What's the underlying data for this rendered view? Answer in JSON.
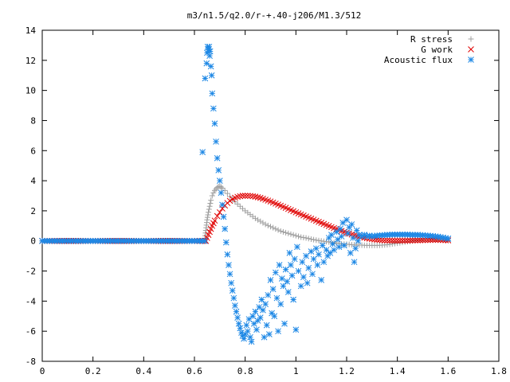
{
  "chart_data": {
    "type": "scatter",
    "title": "m3/n1.5/q2.0/r-+.40-j206/M1.3/512",
    "xlabel": "",
    "ylabel": "",
    "xlim": [
      0,
      1.8
    ],
    "ylim": [
      -8,
      14
    ],
    "x_ticks": [
      "0",
      "0.2",
      "0.4",
      "0.6",
      "0.8",
      "1",
      "1.2",
      "1.4",
      "1.6",
      "1.8"
    ],
    "y_ticks": [
      "-8",
      "-6",
      "-4",
      "-2",
      "0",
      "2",
      "4",
      "6",
      "8",
      "10",
      "12",
      "14"
    ],
    "grid": false,
    "legend_position": "top-right",
    "series": [
      {
        "name": "R stress",
        "marker": "plus",
        "color": "#a0a0a0",
        "points": [
          [
            0.0,
            0.0
          ],
          [
            0.6,
            0.0
          ],
          [
            0.64,
            0.0
          ],
          [
            0.645,
            0.7
          ],
          [
            0.65,
            1.4
          ],
          [
            0.655,
            1.9
          ],
          [
            0.66,
            2.3
          ],
          [
            0.665,
            2.7
          ],
          [
            0.67,
            3.0
          ],
          [
            0.675,
            3.2
          ],
          [
            0.68,
            3.35
          ],
          [
            0.685,
            3.45
          ],
          [
            0.69,
            3.55
          ],
          [
            0.695,
            3.6
          ],
          [
            0.7,
            3.62
          ],
          [
            0.705,
            3.58
          ],
          [
            0.71,
            3.5
          ],
          [
            0.72,
            3.35
          ],
          [
            0.73,
            3.15
          ],
          [
            0.74,
            2.95
          ],
          [
            0.75,
            2.75
          ],
          [
            0.76,
            2.6
          ],
          [
            0.77,
            2.45
          ],
          [
            0.78,
            2.3
          ],
          [
            0.79,
            2.15
          ],
          [
            0.8,
            2.0
          ],
          [
            0.82,
            1.75
          ],
          [
            0.84,
            1.5
          ],
          [
            0.86,
            1.3
          ],
          [
            0.88,
            1.1
          ],
          [
            0.9,
            0.95
          ],
          [
            0.92,
            0.8
          ],
          [
            0.94,
            0.65
          ],
          [
            0.96,
            0.55
          ],
          [
            0.98,
            0.45
          ],
          [
            1.0,
            0.35
          ],
          [
            1.02,
            0.25
          ],
          [
            1.04,
            0.2
          ],
          [
            1.06,
            0.12
          ],
          [
            1.08,
            0.05
          ],
          [
            1.1,
            0.0
          ],
          [
            1.12,
            -0.05
          ],
          [
            1.14,
            -0.1
          ],
          [
            1.16,
            -0.15
          ],
          [
            1.18,
            -0.2
          ],
          [
            1.2,
            -0.22
          ],
          [
            1.22,
            -0.25
          ],
          [
            1.24,
            -0.27
          ],
          [
            1.26,
            -0.28
          ],
          [
            1.28,
            -0.3
          ],
          [
            1.3,
            -0.3
          ],
          [
            1.32,
            -0.3
          ],
          [
            1.34,
            -0.28
          ],
          [
            1.36,
            -0.25
          ],
          [
            1.38,
            -0.2
          ],
          [
            1.4,
            -0.15
          ],
          [
            1.42,
            -0.1
          ],
          [
            1.44,
            -0.05
          ],
          [
            1.46,
            0.0
          ],
          [
            1.48,
            0.05
          ],
          [
            1.5,
            0.08
          ],
          [
            1.52,
            0.1
          ],
          [
            1.54,
            0.1
          ],
          [
            1.56,
            0.08
          ],
          [
            1.58,
            0.05
          ],
          [
            1.6,
            0.02
          ]
        ]
      },
      {
        "name": "G work",
        "marker": "cross",
        "color": "#e00000",
        "points": [
          [
            0.0,
            0.0
          ],
          [
            0.6,
            0.0
          ],
          [
            0.645,
            0.0
          ],
          [
            0.65,
            0.2
          ],
          [
            0.66,
            0.6
          ],
          [
            0.67,
            1.0
          ],
          [
            0.68,
            1.35
          ],
          [
            0.69,
            1.65
          ],
          [
            0.7,
            1.9
          ],
          [
            0.71,
            2.15
          ],
          [
            0.72,
            2.35
          ],
          [
            0.73,
            2.52
          ],
          [
            0.74,
            2.66
          ],
          [
            0.75,
            2.78
          ],
          [
            0.76,
            2.87
          ],
          [
            0.77,
            2.93
          ],
          [
            0.78,
            2.97
          ],
          [
            0.79,
            3.0
          ],
          [
            0.8,
            3.0
          ],
          [
            0.81,
            3.0
          ],
          [
            0.82,
            2.99
          ],
          [
            0.83,
            2.97
          ],
          [
            0.84,
            2.94
          ],
          [
            0.85,
            2.9
          ],
          [
            0.86,
            2.86
          ],
          [
            0.87,
            2.8
          ],
          [
            0.88,
            2.74
          ],
          [
            0.89,
            2.68
          ],
          [
            0.9,
            2.62
          ],
          [
            0.92,
            2.48
          ],
          [
            0.94,
            2.34
          ],
          [
            0.96,
            2.2
          ],
          [
            0.98,
            2.05
          ],
          [
            1.0,
            1.9
          ],
          [
            1.02,
            1.76
          ],
          [
            1.04,
            1.62
          ],
          [
            1.06,
            1.48
          ],
          [
            1.08,
            1.34
          ],
          [
            1.1,
            1.2
          ],
          [
            1.12,
            1.06
          ],
          [
            1.14,
            0.92
          ],
          [
            1.16,
            0.79
          ],
          [
            1.18,
            0.66
          ],
          [
            1.2,
            0.54
          ],
          [
            1.22,
            0.43
          ],
          [
            1.24,
            0.33
          ],
          [
            1.26,
            0.25
          ],
          [
            1.28,
            0.18
          ],
          [
            1.3,
            0.12
          ],
          [
            1.32,
            0.08
          ],
          [
            1.34,
            0.05
          ],
          [
            1.36,
            0.03
          ],
          [
            1.38,
            0.02
          ],
          [
            1.4,
            0.02
          ],
          [
            1.42,
            0.02
          ],
          [
            1.44,
            0.02
          ],
          [
            1.46,
            0.03
          ],
          [
            1.48,
            0.04
          ],
          [
            1.5,
            0.05
          ],
          [
            1.52,
            0.06
          ],
          [
            1.54,
            0.07
          ],
          [
            1.56,
            0.07
          ],
          [
            1.58,
            0.06
          ],
          [
            1.6,
            0.04
          ]
        ]
      },
      {
        "name": "Acoustic flux",
        "marker": "star",
        "color": "#1e88e5",
        "points": [
          [
            0.0,
            0.0
          ],
          [
            0.02,
            0.0
          ],
          [
            0.05,
            0.0
          ],
          [
            0.08,
            0.0
          ],
          [
            0.11,
            0.0
          ],
          [
            0.14,
            0.0
          ],
          [
            0.17,
            0.0
          ],
          [
            0.2,
            0.0
          ],
          [
            0.23,
            0.0
          ],
          [
            0.26,
            0.0
          ],
          [
            0.29,
            0.0
          ],
          [
            0.32,
            0.0
          ],
          [
            0.35,
            0.0
          ],
          [
            0.38,
            0.0
          ],
          [
            0.41,
            0.0
          ],
          [
            0.44,
            0.0
          ],
          [
            0.47,
            0.0
          ],
          [
            0.5,
            0.0
          ],
          [
            0.53,
            0.0
          ],
          [
            0.56,
            0.0
          ],
          [
            0.59,
            0.0
          ],
          [
            0.62,
            0.0
          ],
          [
            0.64,
            0.0
          ],
          [
            0.632,
            5.9
          ],
          [
            0.642,
            10.8
          ],
          [
            0.648,
            11.8
          ],
          [
            0.65,
            12.5
          ],
          [
            0.652,
            12.9
          ],
          [
            0.655,
            12.7
          ],
          [
            0.658,
            12.9
          ],
          [
            0.66,
            12.3
          ],
          [
            0.662,
            12.6
          ],
          [
            0.665,
            11.6
          ],
          [
            0.668,
            11.0
          ],
          [
            0.67,
            9.8
          ],
          [
            0.675,
            8.8
          ],
          [
            0.68,
            7.8
          ],
          [
            0.685,
            6.6
          ],
          [
            0.69,
            5.5
          ],
          [
            0.695,
            4.7
          ],
          [
            0.7,
            4.0
          ],
          [
            0.705,
            3.2
          ],
          [
            0.71,
            2.4
          ],
          [
            0.715,
            1.6
          ],
          [
            0.72,
            0.8
          ],
          [
            0.725,
            -0.1
          ],
          [
            0.73,
            -0.9
          ],
          [
            0.735,
            -1.6
          ],
          [
            0.74,
            -2.2
          ],
          [
            0.745,
            -2.8
          ],
          [
            0.75,
            -3.3
          ],
          [
            0.755,
            -3.8
          ],
          [
            0.76,
            -4.3
          ],
          [
            0.765,
            -4.7
          ],
          [
            0.77,
            -5.1
          ],
          [
            0.775,
            -5.5
          ],
          [
            0.78,
            -5.8
          ],
          [
            0.785,
            -6.1
          ],
          [
            0.79,
            -6.3
          ],
          [
            0.795,
            -6.5
          ],
          [
            0.8,
            -6.2
          ],
          [
            0.805,
            -5.6
          ],
          [
            0.81,
            -6.0
          ],
          [
            0.815,
            -5.2
          ],
          [
            0.82,
            -6.4
          ],
          [
            0.825,
            -6.7
          ],
          [
            0.83,
            -5.0
          ],
          [
            0.835,
            -5.5
          ],
          [
            0.84,
            -4.7
          ],
          [
            0.845,
            -5.9
          ],
          [
            0.85,
            -5.3
          ],
          [
            0.855,
            -4.4
          ],
          [
            0.86,
            -5.1
          ],
          [
            0.865,
            -3.9
          ],
          [
            0.87,
            -4.6
          ],
          [
            0.875,
            -6.4
          ],
          [
            0.88,
            -4.2
          ],
          [
            0.885,
            -5.6
          ],
          [
            0.89,
            -3.6
          ],
          [
            0.895,
            -6.2
          ],
          [
            0.9,
            -2.6
          ],
          [
            0.905,
            -4.8
          ],
          [
            0.91,
            -3.2
          ],
          [
            0.915,
            -5.0
          ],
          [
            0.92,
            -2.1
          ],
          [
            0.925,
            -3.8
          ],
          [
            0.93,
            -6.0
          ],
          [
            0.935,
            -1.6
          ],
          [
            0.94,
            -4.2
          ],
          [
            0.945,
            -2.5
          ],
          [
            0.95,
            -3.0
          ],
          [
            0.955,
            -5.5
          ],
          [
            0.96,
            -1.9
          ],
          [
            0.965,
            -2.7
          ],
          [
            0.97,
            -3.4
          ],
          [
            0.975,
            -0.8
          ],
          [
            0.98,
            -1.6
          ],
          [
            0.985,
            -2.3
          ],
          [
            0.99,
            -3.9
          ],
          [
            0.995,
            -1.2
          ],
          [
            1.0,
            -5.9
          ],
          [
            1.005,
            -0.4
          ],
          [
            1.01,
            -2.0
          ],
          [
            1.02,
            -3.0
          ],
          [
            1.025,
            -1.4
          ],
          [
            1.03,
            -2.4
          ],
          [
            1.04,
            -1.0
          ],
          [
            1.045,
            -2.8
          ],
          [
            1.05,
            -1.8
          ],
          [
            1.06,
            -0.7
          ],
          [
            1.065,
            -2.2
          ],
          [
            1.07,
            -1.2
          ],
          [
            1.08,
            -0.5
          ],
          [
            1.085,
            -1.6
          ],
          [
            1.09,
            -0.9
          ],
          [
            1.1,
            -2.6
          ],
          [
            1.105,
            -0.3
          ],
          [
            1.11,
            -1.4
          ],
          [
            1.12,
            -0.6
          ],
          [
            1.125,
            -1.0
          ],
          [
            1.13,
            0.2
          ],
          [
            1.135,
            -0.8
          ],
          [
            1.14,
            0.4
          ],
          [
            1.145,
            -0.2
          ],
          [
            1.15,
            -0.6
          ],
          [
            1.16,
            0.6
          ],
          [
            1.165,
            0.1
          ],
          [
            1.17,
            -0.4
          ],
          [
            1.175,
            0.8
          ],
          [
            1.18,
            0.3
          ],
          [
            1.185,
            1.2
          ],
          [
            1.19,
            -0.3
          ],
          [
            1.2,
            1.4
          ],
          [
            1.205,
            0.5
          ],
          [
            1.21,
            0.9
          ],
          [
            1.215,
            -0.8
          ],
          [
            1.22,
            1.1
          ],
          [
            1.225,
            0.2
          ],
          [
            1.23,
            -1.4
          ],
          [
            1.235,
            -0.5
          ],
          [
            1.24,
            0.7
          ],
          [
            1.245,
            0.0
          ],
          [
            1.25,
            0.4
          ],
          [
            1.26,
            0.3
          ],
          [
            1.27,
            0.4
          ],
          [
            1.28,
            0.3
          ],
          [
            1.29,
            0.35
          ],
          [
            1.3,
            0.3
          ],
          [
            1.32,
            0.35
          ],
          [
            1.34,
            0.38
          ],
          [
            1.36,
            0.4
          ],
          [
            1.38,
            0.42
          ],
          [
            1.4,
            0.42
          ],
          [
            1.42,
            0.42
          ],
          [
            1.44,
            0.42
          ],
          [
            1.46,
            0.4
          ],
          [
            1.48,
            0.4
          ],
          [
            1.5,
            0.38
          ],
          [
            1.52,
            0.35
          ],
          [
            1.54,
            0.32
          ],
          [
            1.56,
            0.28
          ],
          [
            1.58,
            0.22
          ],
          [
            1.6,
            0.15
          ]
        ]
      }
    ]
  }
}
